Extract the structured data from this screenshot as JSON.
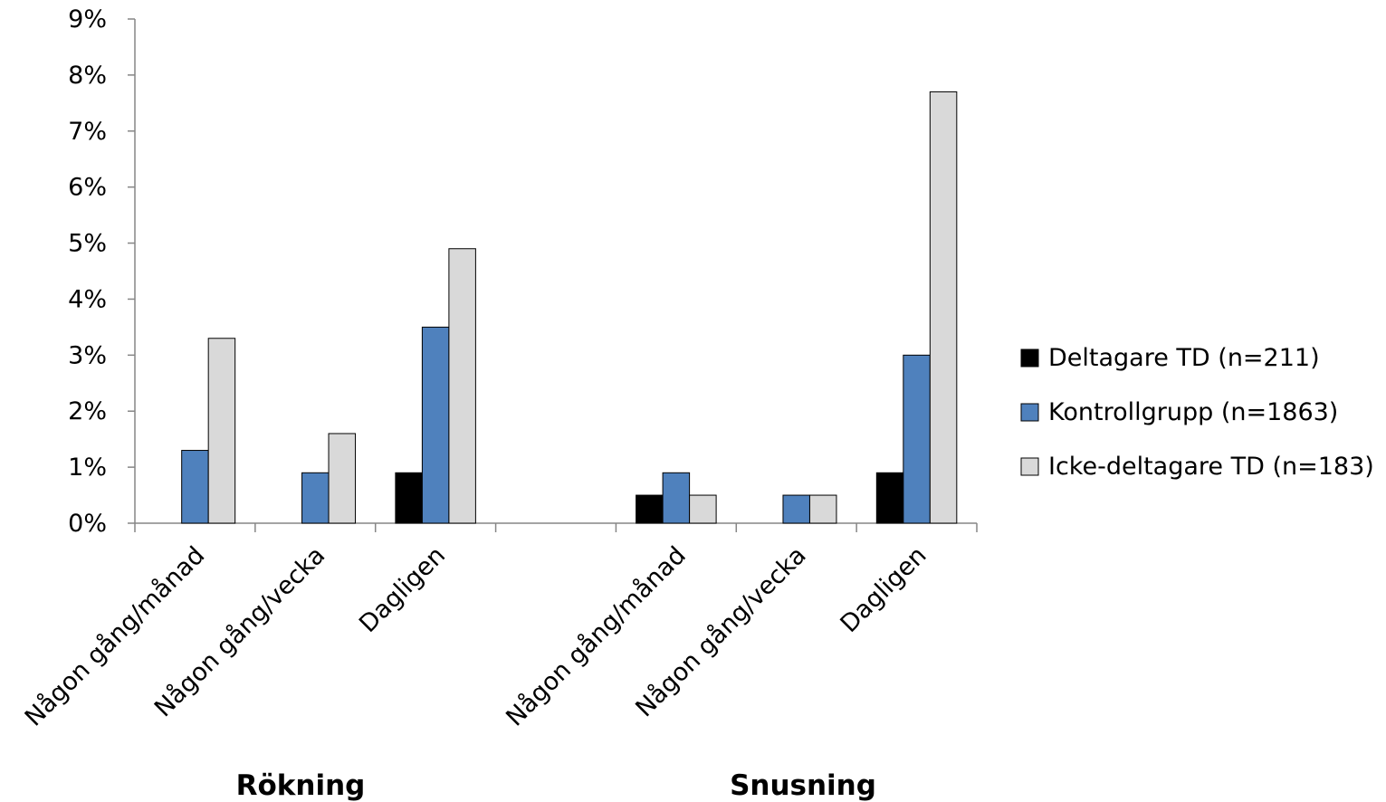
{
  "chart_data": {
    "type": "bar",
    "groups": [
      {
        "label": "Rökning",
        "categories": [
          "Någon gång/månad",
          "Någon gång/vecka",
          "Dagligen"
        ]
      },
      {
        "label": "Snusning",
        "categories": [
          "Någon gång/månad",
          "Någon gång/vecka",
          "Dagligen"
        ]
      }
    ],
    "categories": [
      "Någon gång/månad",
      "Någon gång/vecka",
      "Dagligen",
      "",
      "Någon gång/månad",
      "Någon gång/vecka",
      "Dagligen"
    ],
    "series": [
      {
        "name": "Deltagare TD (n=211)",
        "color": "#000000",
        "values": [
          0,
          0,
          0.9,
          null,
          0.5,
          0,
          0.9
        ]
      },
      {
        "name": "Kontrollgrupp (n=1863)",
        "color": "#4f81bd",
        "values": [
          1.3,
          0.9,
          3.5,
          null,
          0.9,
          0.5,
          3.0
        ]
      },
      {
        "name": "Icke-deltagare TD (n=183)",
        "color": "#d9d9d9",
        "values": [
          3.3,
          1.6,
          4.9,
          null,
          0.5,
          0.5,
          7.7
        ]
      }
    ],
    "yticks": [
      "0%",
      "1%",
      "2%",
      "3%",
      "4%",
      "5%",
      "6%",
      "7%",
      "8%",
      "9%"
    ],
    "ylim": [
      0,
      9
    ],
    "unit": "%",
    "grid": false,
    "legend_position": "right"
  }
}
